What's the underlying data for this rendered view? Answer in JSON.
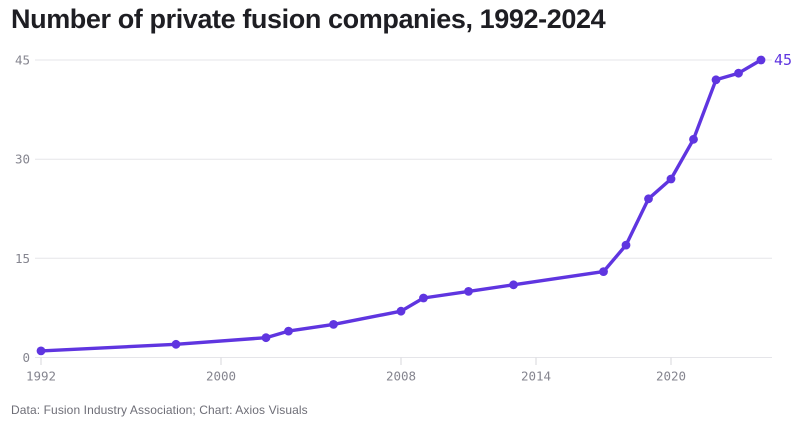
{
  "title": "Number of private fusion companies, 1992-2024",
  "footer": "Data: Fusion Industry Association; Chart: Axios Visuals",
  "colors": {
    "line": "#5f35e0",
    "point": "#5f35e0",
    "annotation": "#5f35e0",
    "grid": "#e5e5e9",
    "tick_mark": "#d7d7db",
    "axis_label": "#85858f",
    "title_text": "#1e1e23",
    "footer_text": "#6e6e77",
    "background": "#ffffff"
  },
  "chart_data": {
    "type": "line",
    "title": "Number of private fusion companies, 1992-2024",
    "x": [
      1992,
      1998,
      2002,
      2003,
      2005,
      2008,
      2009,
      2011,
      2013,
      2017,
      2018,
      2019,
      2020,
      2021,
      2022,
      2023,
      2024
    ],
    "values": [
      1,
      2,
      3,
      4,
      5,
      7,
      9,
      10,
      11,
      13,
      17,
      24,
      27,
      33,
      42,
      43,
      45
    ],
    "series_name": "Number of private fusion companies",
    "xlabel": "",
    "ylabel": "",
    "xlim": [
      1992,
      2024.5
    ],
    "ylim": [
      0,
      45
    ],
    "xticks": [
      1992,
      2000,
      2008,
      2014,
      2020
    ],
    "yticks": [
      0,
      15,
      30,
      45
    ],
    "grid": "horizontal",
    "legend": "none",
    "marker": "circle",
    "end_label": "45"
  }
}
